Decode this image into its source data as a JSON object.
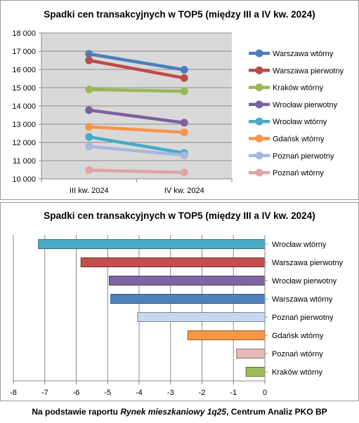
{
  "chart_data": [
    {
      "type": "line",
      "title": "Spadki cen transakcyjnych w TOP5 (między III a IV kw. 2024)",
      "categories": [
        "III kw. 2024",
        "IV kw. 2024"
      ],
      "ylim": [
        10000,
        18000
      ],
      "yticks": [
        "10 000",
        "11 000",
        "12 000",
        "13 000",
        "14 000",
        "15 000",
        "16 000",
        "17 000",
        "18 000"
      ],
      "grid": true,
      "legend_position": "right",
      "series": [
        {
          "name": "Warszawa wtórny",
          "values": [
            16850,
            15980
          ],
          "color": "#4a7ebb"
        },
        {
          "name": "Warszawa pierwotny",
          "values": [
            16500,
            15530
          ],
          "color": "#be4b48"
        },
        {
          "name": "Kraków wtórny",
          "values": [
            14900,
            14800
          ],
          "color": "#98b954"
        },
        {
          "name": "Wrocław pierwotny",
          "values": [
            13770,
            13080
          ],
          "color": "#7d60a0"
        },
        {
          "name": "Wrocław wtórny",
          "values": [
            12300,
            11420
          ],
          "color": "#46aac5"
        },
        {
          "name": "Gdańsk wtórny",
          "values": [
            12850,
            12550
          ],
          "color": "#f79646"
        },
        {
          "name": "Poznań pierwotny",
          "values": [
            11780,
            11300
          ],
          "color": "#a5b8de"
        },
        {
          "name": "Poznań wtórny",
          "values": [
            10480,
            10350
          ],
          "color": "#e0a4a3"
        }
      ]
    },
    {
      "type": "bar",
      "orientation": "horizontal",
      "title": "Spadki cen transakcyjnych w TOP5 (między III a IV kw. 2024)",
      "categories": [
        "Wrocław wtórny",
        "Warszawa pierwotny",
        "Wrocław pierwotny",
        "Warszawa wtórny",
        "Poznań pierwotny",
        "Gdańsk wtórny",
        "Poznań wtórny",
        "Kraków wtórny"
      ],
      "values": [
        -7.2,
        -5.85,
        -4.95,
        -4.9,
        -4.05,
        -2.45,
        -0.9,
        -0.6
      ],
      "colors": [
        "#4bacc6",
        "#c0504d",
        "#8064a2",
        "#4f81bd",
        "#c6d9f1",
        "#f79646",
        "#e6b9b8",
        "#9bbb59"
      ],
      "xlim": [
        -8,
        0
      ],
      "xticks": [
        "-8",
        "-7",
        "-6",
        "-5",
        "-4",
        "-3",
        "-2",
        "-1",
        "0"
      ],
      "grid": true
    }
  ],
  "source": {
    "prefix": "Na podstawie raportu ",
    "report": "Rynek mieszkaniowy 1q25",
    "suffix": ", Centrum Analiz PKO BP"
  }
}
